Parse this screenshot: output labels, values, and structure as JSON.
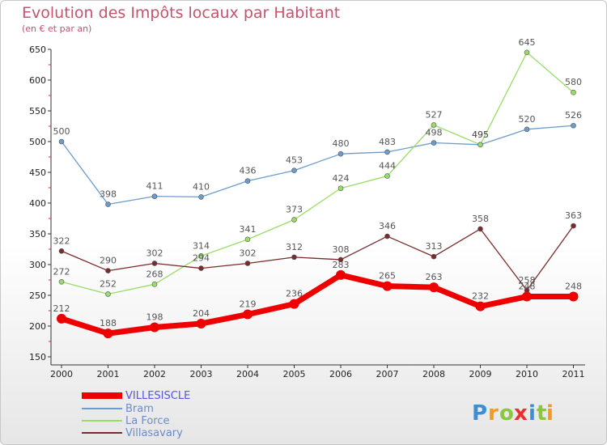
{
  "header": {
    "title": "Evolution des Impôts locaux par Habitant",
    "subtitle": "(en € et par an)"
  },
  "logo": {
    "letters": [
      "P",
      "r",
      "o",
      "x",
      "i",
      "t",
      "i"
    ],
    "colors": [
      "#3a8fd6",
      "#f39a1f",
      "#8cc63f",
      "#e8312f",
      "#3a8fd6",
      "#8cc63f",
      "#f39a1f"
    ]
  },
  "chart_data": {
    "type": "line",
    "title": "Evolution des Impôts locaux par Habitant",
    "subtitle": "(en € et par an)",
    "xlabel": "",
    "ylabel": "",
    "x": [
      "2000",
      "2001",
      "2002",
      "2003",
      "2004",
      "2005",
      "2006",
      "2007",
      "2008",
      "2009",
      "2010",
      "2011"
    ],
    "ylim": [
      150,
      650
    ],
    "yticks": [
      150,
      200,
      250,
      300,
      350,
      400,
      450,
      500,
      550,
      600,
      650
    ],
    "grid": false,
    "legend": "bottom-left",
    "series": [
      {
        "name": "VILLESISCLE",
        "color": "#ee0000",
        "values": [
          212,
          188,
          198,
          204,
          219,
          236,
          283,
          265,
          263,
          232,
          248,
          248
        ]
      },
      {
        "name": "Bram",
        "color": "#6c9ccc",
        "values": [
          500,
          398,
          411,
          410,
          436,
          453,
          480,
          483,
          498,
          495,
          520,
          526
        ]
      },
      {
        "name": "La Force",
        "color": "#99dd66",
        "values": [
          272,
          252,
          268,
          314,
          341,
          373,
          424,
          444,
          527,
          495,
          645,
          580
        ]
      },
      {
        "name": "Villasavary",
        "color": "#7a2b2b",
        "values": [
          322,
          290,
          302,
          294,
          302,
          312,
          308,
          346,
          313,
          358,
          258,
          363
        ]
      }
    ]
  }
}
